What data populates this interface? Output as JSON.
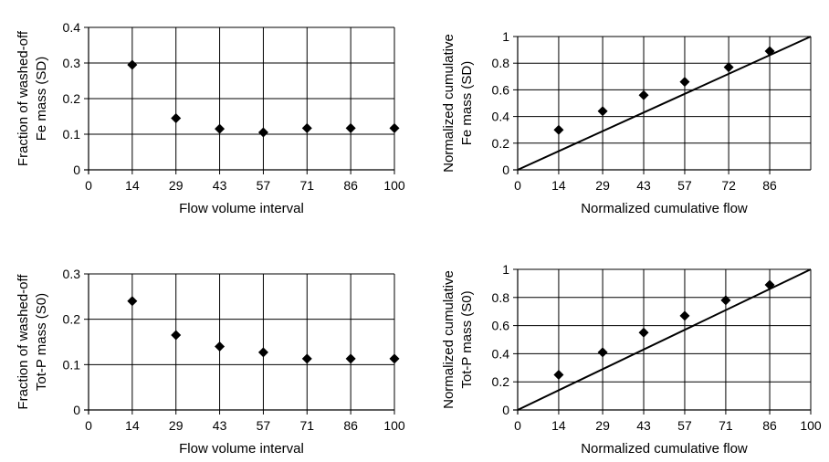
{
  "chart_data": [
    {
      "type": "scatter",
      "xlabel": "Flow volume interval",
      "ylabel_lines": [
        "Fraction of washed-off",
        "Fe mass (SD)"
      ],
      "categorical_x": true,
      "x_ticks": [
        "0",
        "14",
        "29",
        "43",
        "57",
        "71",
        "86",
        "100"
      ],
      "y_ticks": [
        "0",
        "0.1",
        "0.2",
        "0.3",
        "0.4"
      ],
      "ylim": [
        0,
        0.4
      ],
      "grid": true,
      "series": [
        {
          "x": [
            14,
            29,
            43,
            57,
            71,
            86,
            100
          ],
          "y": [
            0.295,
            0.145,
            0.115,
            0.105,
            0.117,
            0.117,
            0.117
          ]
        }
      ],
      "reference_line": false
    },
    {
      "type": "scatter",
      "xlabel": "Normalized cumulative flow",
      "ylabel_lines": [
        "Normalized cumulative",
        "Fe mass (SD)"
      ],
      "categorical_x": false,
      "x_ticks": [
        "0",
        "14",
        "29",
        "43",
        "57",
        "72",
        "86"
      ],
      "x_tick_values": [
        0,
        14,
        29,
        43,
        57,
        72,
        86
      ],
      "xlim": [
        0,
        100
      ],
      "y_ticks": [
        "0",
        "0.2",
        "0.4",
        "0.6",
        "0.8",
        "1"
      ],
      "ylim": [
        0,
        1
      ],
      "grid": true,
      "series": [
        {
          "x": [
            14,
            29,
            43,
            57,
            72,
            86
          ],
          "y": [
            0.3,
            0.44,
            0.56,
            0.66,
            0.77,
            0.89
          ]
        }
      ],
      "reference_line": true
    },
    {
      "type": "scatter",
      "xlabel": "Flow volume interval",
      "ylabel_lines": [
        "Fraction of washed-off",
        "Tot-P mass (S0)"
      ],
      "categorical_x": true,
      "x_ticks": [
        "0",
        "14",
        "29",
        "43",
        "57",
        "71",
        "86",
        "100"
      ],
      "y_ticks": [
        "0",
        "0.1",
        "0.2",
        "0.3"
      ],
      "ylim": [
        0,
        0.3
      ],
      "grid": true,
      "series": [
        {
          "x": [
            14,
            29,
            43,
            57,
            71,
            86,
            100
          ],
          "y": [
            0.24,
            0.165,
            0.14,
            0.127,
            0.113,
            0.113,
            0.113
          ]
        }
      ],
      "reference_line": false
    },
    {
      "type": "scatter",
      "xlabel": "Normalized cumulative flow",
      "ylabel_lines": [
        "Normalized cumulative",
        "Tot-P mass (S0)"
      ],
      "categorical_x": false,
      "x_ticks": [
        "0",
        "14",
        "29",
        "43",
        "57",
        "71",
        "86",
        "100"
      ],
      "x_tick_values": [
        0,
        14,
        29,
        43,
        57,
        71,
        86,
        100
      ],
      "xlim": [
        0,
        100
      ],
      "y_ticks": [
        "0",
        "0.2",
        "0.4",
        "0.6",
        "0.8",
        "1"
      ],
      "ylim": [
        0,
        1
      ],
      "grid": true,
      "series": [
        {
          "x": [
            14,
            29,
            43,
            57,
            71,
            86
          ],
          "y": [
            0.25,
            0.41,
            0.55,
            0.67,
            0.78,
            0.89
          ]
        }
      ],
      "reference_line": true
    }
  ]
}
